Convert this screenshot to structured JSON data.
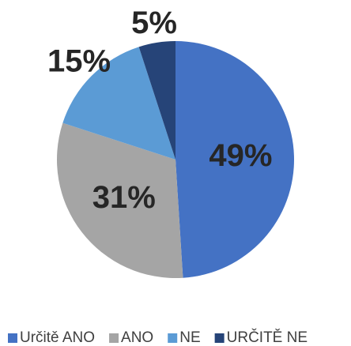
{
  "chart_data": {
    "type": "pie",
    "categories": [
      "Určitě ANO",
      "ANO",
      "NE",
      "URČITĚ NE"
    ],
    "values": [
      49,
      31,
      15,
      5
    ],
    "value_labels": [
      "49%",
      "31%",
      "15%",
      "5%"
    ],
    "colors": [
      "#4472c4",
      "#a5a5a5",
      "#5b9bd5",
      "#264478"
    ],
    "legend": "bottom"
  }
}
